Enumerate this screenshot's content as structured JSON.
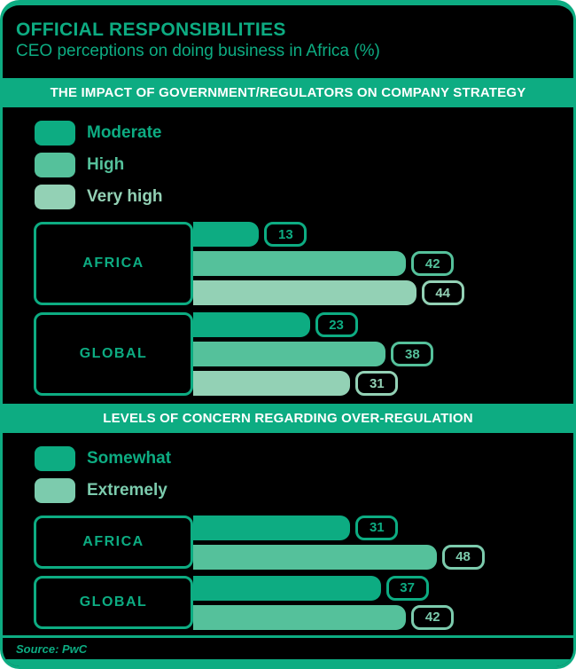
{
  "header": {
    "title": "OFFICIAL RESPONSIBILITIES",
    "subtitle": "CEO perceptions on doing business in Africa (%)"
  },
  "source": "Source: PwC",
  "colors": {
    "brand_green": "#0DAC82",
    "series_dark": "#0DAC82",
    "series_medium": "#55C19B",
    "series_light": "#93D1B5",
    "extremely_accent": "#7CCBAD",
    "band_text": "#FFFFFF",
    "background": "#000000"
  },
  "chart_data": [
    {
      "type": "bar",
      "orientation": "horizontal",
      "title": "THE IMPACT OF GOVERNMENT/REGULATORS ON COMPANY STRATEGY",
      "unit": "%",
      "value_labels": true,
      "legend_position": "top-left",
      "xlim": [
        0,
        75
      ],
      "grid": false,
      "categories": [
        "AFRICA",
        "GLOBAL"
      ],
      "series": [
        {
          "name": "Moderate",
          "color": "#0DAC82",
          "accent": "#0DAC82",
          "values": [
            13,
            23
          ]
        },
        {
          "name": "High",
          "color": "#55C19B",
          "accent": "#55C19B",
          "values": [
            42,
            38
          ]
        },
        {
          "name": "Very high",
          "color": "#93D1B5",
          "accent": "#93D1B5",
          "values": [
            44,
            31
          ]
        }
      ]
    },
    {
      "type": "bar",
      "orientation": "horizontal",
      "title": "LEVELS OF CONCERN REGARDING OVER-REGULATION",
      "unit": "%",
      "value_labels": true,
      "legend_position": "top-left",
      "xlim": [
        0,
        75
      ],
      "grid": false,
      "categories": [
        "AFRICA",
        "GLOBAL"
      ],
      "series": [
        {
          "name": "Somewhat",
          "color": "#0DAC82",
          "accent": "#0DAC82",
          "values": [
            31,
            37
          ]
        },
        {
          "name": "Extremely",
          "color": "#55C19B",
          "accent": "#7CCBAD",
          "values": [
            48,
            42
          ]
        }
      ]
    }
  ]
}
